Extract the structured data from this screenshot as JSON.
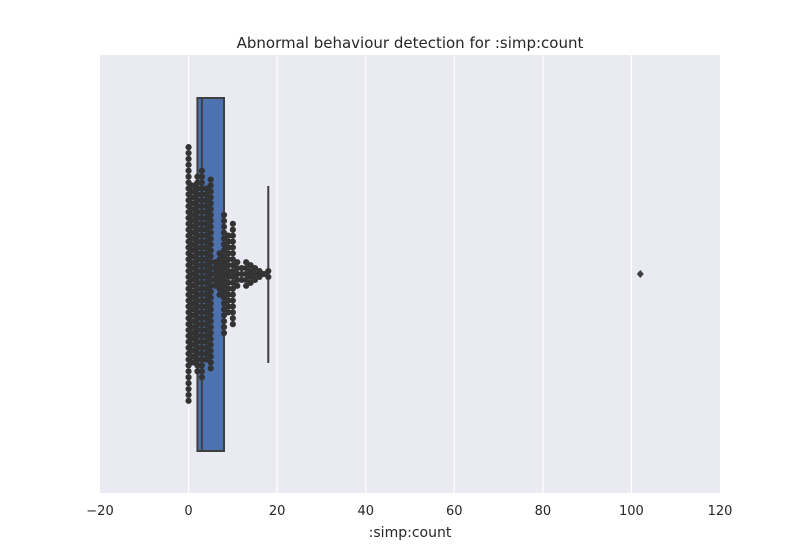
{
  "chart_data": {
    "type": "box-swarm",
    "title": "Abnormal behaviour detection for :simp:count",
    "xlabel": ":simp:count",
    "ylabel": "",
    "xlim": [
      -20,
      120
    ],
    "x_ticks": [
      -20,
      0,
      20,
      40,
      60,
      80,
      100,
      120
    ],
    "x_tick_labels": [
      "−20",
      "0",
      "20",
      "40",
      "60",
      "80",
      "100",
      "120"
    ],
    "grid": true,
    "box": {
      "q1": 2,
      "median": 3,
      "q3": 8,
      "whisker_low": 1,
      "whisker_high": 18,
      "outliers": [
        102
      ]
    },
    "swarm_values": [
      0,
      0,
      0,
      0,
      0,
      0,
      0,
      0,
      0,
      0,
      0,
      0,
      0,
      0,
      0,
      0,
      0,
      0,
      0,
      0,
      0,
      0,
      0,
      0,
      0,
      0,
      0,
      0,
      0,
      0,
      0,
      0,
      0,
      0,
      0,
      0,
      0,
      0,
      0,
      0,
      0,
      0,
      0,
      0,
      1,
      1,
      1,
      1,
      1,
      1,
      1,
      1,
      1,
      1,
      1,
      1,
      1,
      1,
      1,
      1,
      1,
      1,
      1,
      1,
      1,
      1,
      1,
      1,
      1,
      1,
      1,
      1,
      1,
      1,
      1,
      1,
      1,
      1,
      1,
      1,
      1,
      1,
      1,
      1,
      1,
      1,
      1,
      1,
      1,
      1,
      1,
      1,
      1,
      1,
      1,
      1,
      1,
      1,
      1,
      1,
      1,
      1,
      1,
      1,
      1,
      1,
      2,
      2,
      2,
      2,
      2,
      2,
      2,
      2,
      2,
      2,
      2,
      2,
      2,
      2,
      2,
      2,
      2,
      2,
      2,
      2,
      2,
      2,
      2,
      2,
      2,
      2,
      2,
      2,
      2,
      2,
      2,
      2,
      2,
      2,
      3,
      3,
      3,
      3,
      3,
      3,
      3,
      3,
      3,
      3,
      3,
      3,
      3,
      3,
      3,
      3,
      3,
      3,
      3,
      3,
      3,
      3,
      3,
      3,
      3,
      3,
      3,
      3,
      3,
      3,
      3,
      3,
      3,
      3,
      3,
      3,
      4,
      4,
      4,
      4,
      4,
      4,
      4,
      4,
      4,
      4,
      4,
      4,
      4,
      4,
      4,
      4,
      4,
      4,
      4,
      4,
      4,
      4,
      4,
      4,
      4,
      4,
      4,
      4,
      4,
      4,
      5,
      5,
      5,
      5,
      5,
      5,
      5,
      5,
      5,
      5,
      5,
      5,
      5,
      5,
      5,
      5,
      5,
      5,
      5,
      5,
      5,
      5,
      5,
      5,
      5,
      5,
      5,
      5,
      5,
      5,
      5,
      5,
      5,
      6,
      6,
      6,
      6,
      6,
      7,
      7,
      7,
      7,
      7,
      7,
      7,
      7,
      8,
      8,
      8,
      8,
      8,
      8,
      8,
      8,
      8,
      8,
      8,
      8,
      8,
      8,
      8,
      8,
      8,
      8,
      8,
      8,
      8,
      9,
      9,
      9,
      9,
      9,
      9,
      9,
      9,
      9,
      9,
      9,
      9,
      9,
      9,
      10,
      10,
      10,
      10,
      10,
      10,
      10,
      10,
      10,
      10,
      10,
      10,
      10,
      10,
      10,
      10,
      10,
      10,
      11,
      11,
      11,
      11,
      11,
      12,
      12,
      12,
      13,
      13,
      13,
      13,
      13,
      14,
      14,
      14,
      14,
      15,
      15,
      15,
      16,
      16,
      17,
      18,
      18
    ],
    "colors": {
      "box": "#4c72b0",
      "box_edge": "#3f3f3f",
      "points": "#333333",
      "background": "#eaeaf2",
      "grid": "#ffffff",
      "outlier": "#3f3f3f"
    }
  }
}
